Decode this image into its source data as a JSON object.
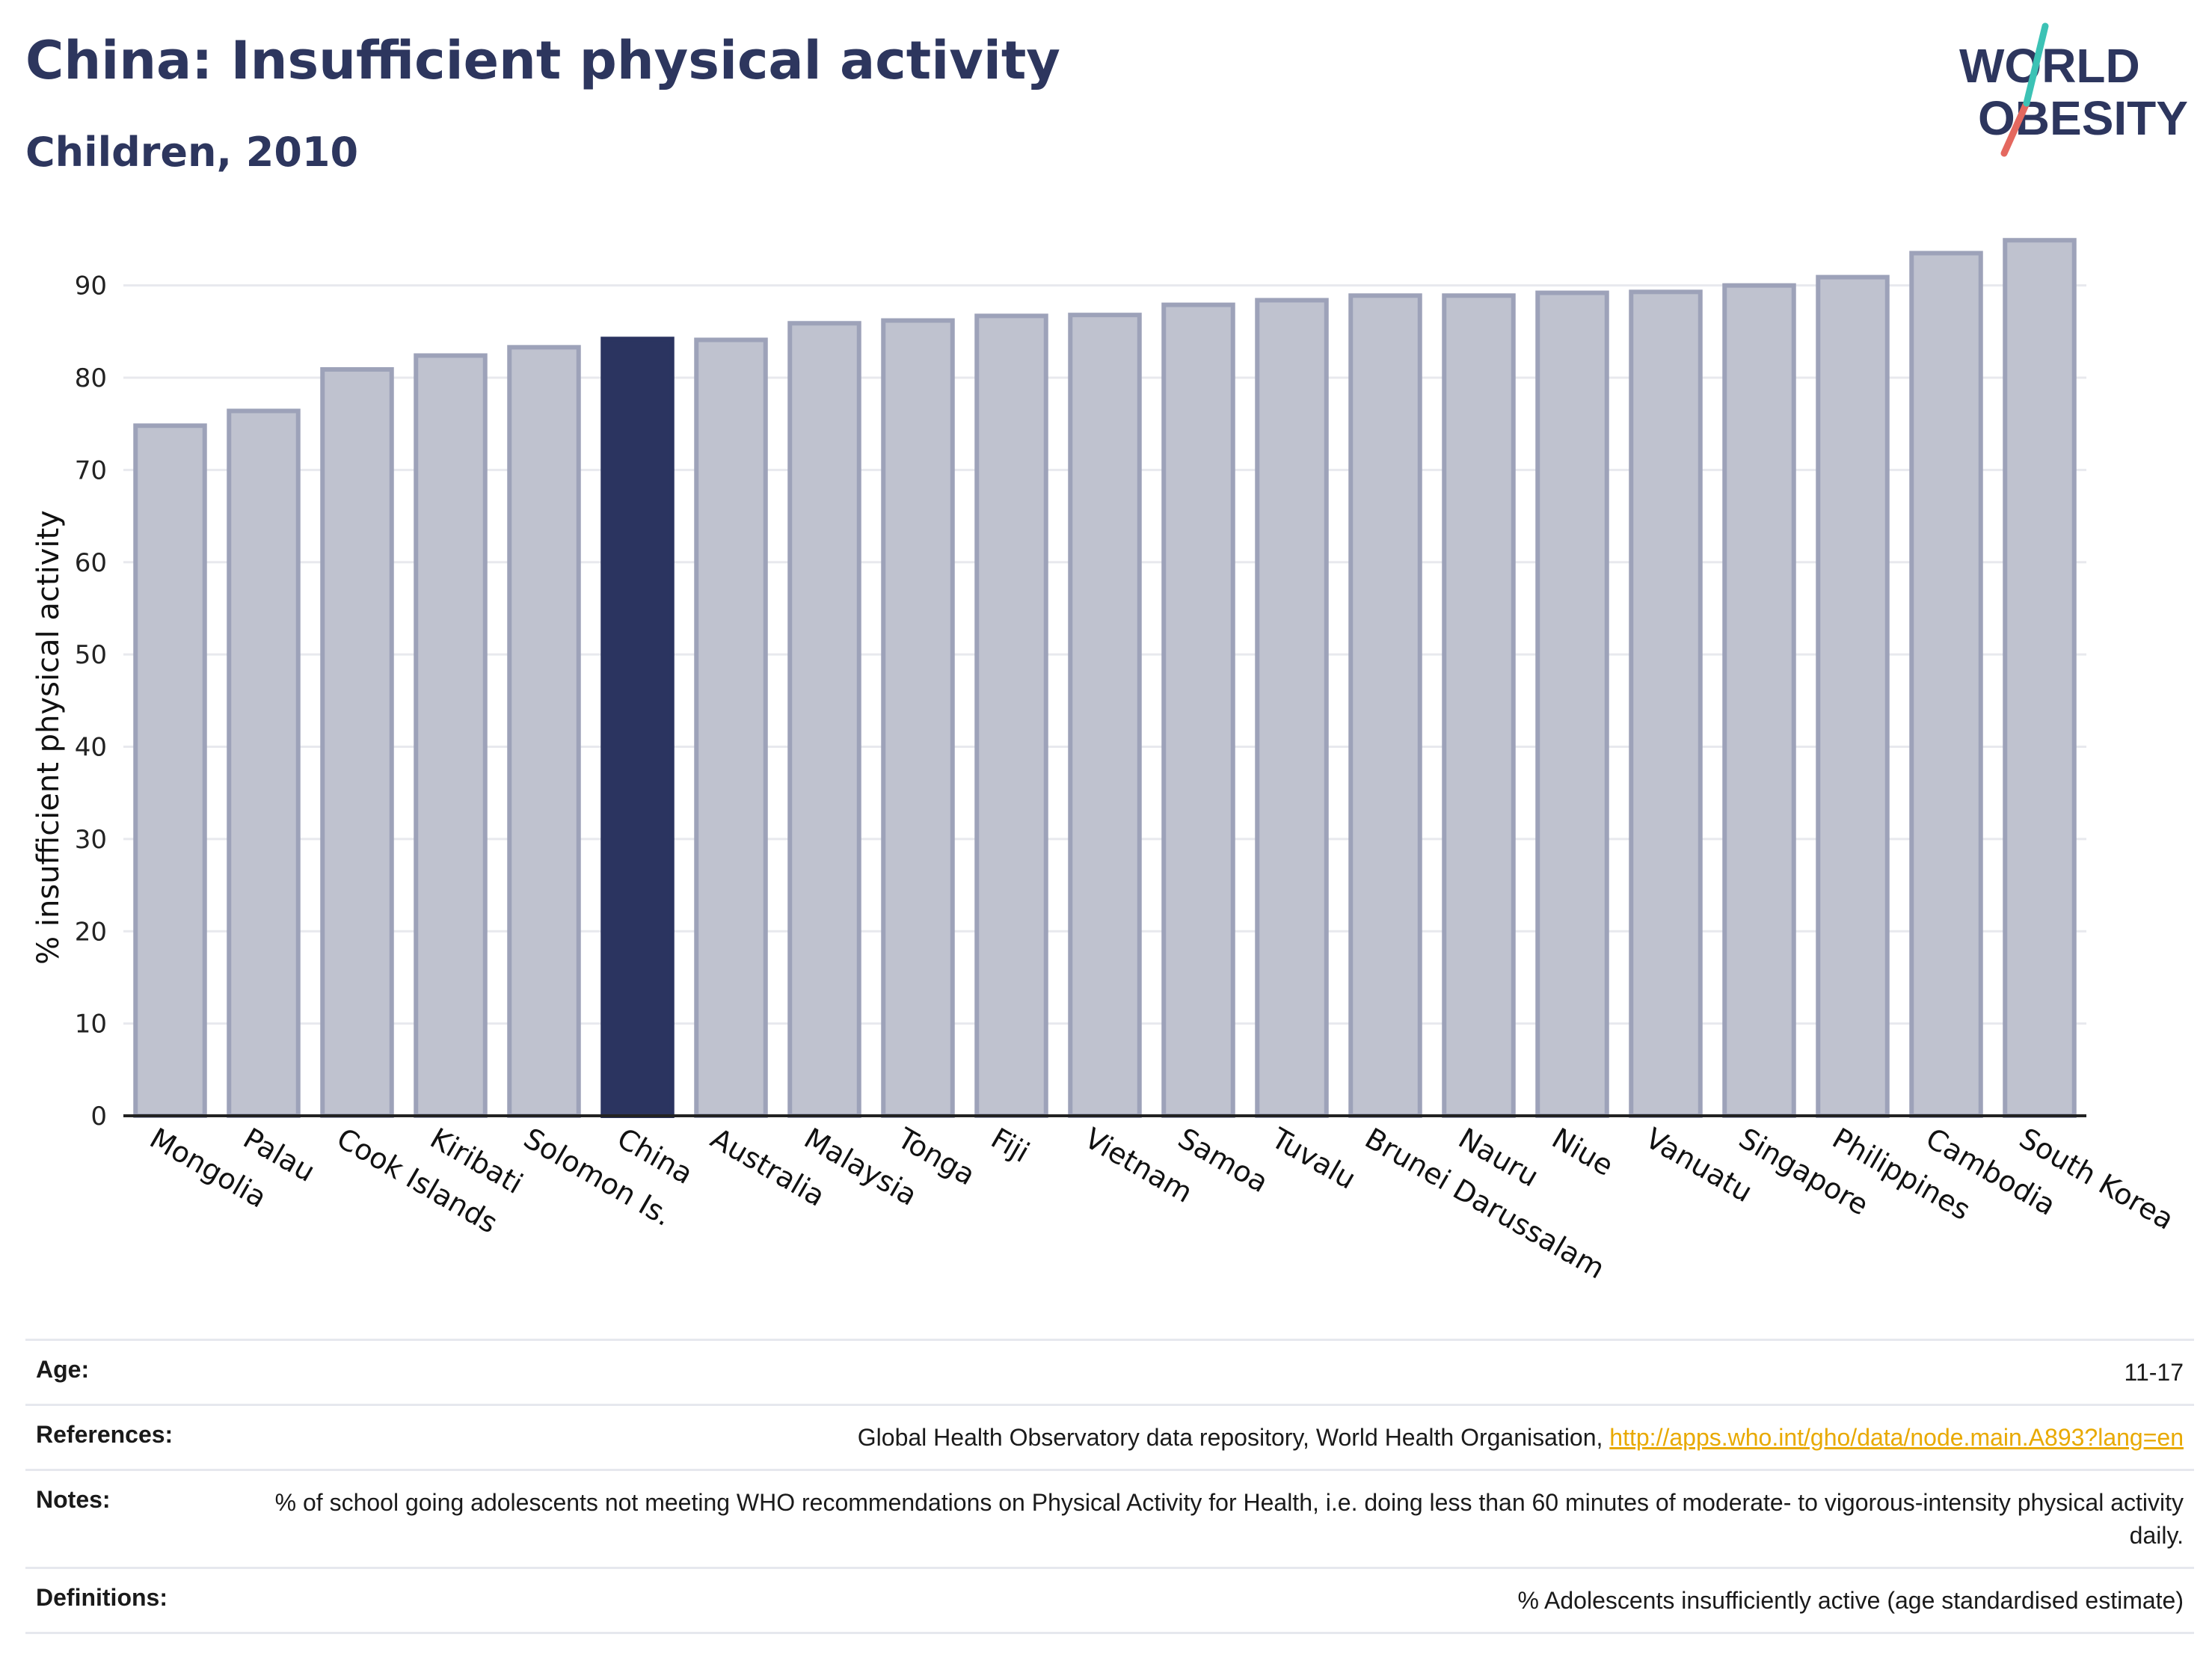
{
  "header": {
    "title": "China: Insufficient physical activity",
    "subtitle": "Children, 2010"
  },
  "logo": {
    "line1": "WORLD",
    "line2": "OBESITY"
  },
  "chart_data": {
    "type": "bar",
    "title": "China: Insufficient physical activity",
    "subtitle": "Children, 2010",
    "ylabel": "% insufficient physical activity",
    "xlabel": "",
    "ylim": [
      0,
      95
    ],
    "yticks": [
      0,
      10,
      20,
      30,
      40,
      50,
      60,
      70,
      80,
      90
    ],
    "grid": true,
    "highlight": "China",
    "categories": [
      "Mongolia",
      "Palau",
      "Cook Islands",
      "Kiribati",
      "Solomon Is.",
      "China",
      "Australia",
      "Malaysia",
      "Tonga",
      "Fiji",
      "Vietnam",
      "Samoa",
      "Tuvalu",
      "Brunei Darussalam",
      "Nauru",
      "Niue",
      "Vanuatu",
      "Singapore",
      "Philippines",
      "Cambodia",
      "South Korea"
    ],
    "values": [
      74.8,
      76.4,
      80.9,
      82.4,
      83.3,
      84.2,
      84.1,
      85.9,
      86.2,
      86.7,
      86.8,
      87.9,
      88.4,
      88.9,
      88.9,
      89.2,
      89.3,
      90.0,
      90.9,
      93.5,
      94.9
    ],
    "colors": {
      "bar": "#bfc2cf",
      "bar_edge": "#9da2b9",
      "highlight": "#2b3460",
      "grid": "#e8e9ee",
      "axis": "#222222"
    }
  },
  "info": {
    "rows": [
      {
        "key": "Age:",
        "value": "11-17"
      },
      {
        "key": "References:",
        "value": "Global Health Observatory data repository, World Health Organisation, ",
        "link": "http://apps.who.int/gho/data/node.main.A893?lang=en"
      },
      {
        "key": "Notes:",
        "value": "% of school going adolescents not meeting WHO recommendations on Physical Activity for Health, i.e. doing less than 60 minutes of moderate- to vigorous-intensity physical activity daily."
      },
      {
        "key": "Definitions:",
        "value": "% Adolescents insufficiently active (age standardised estimate)"
      }
    ]
  }
}
